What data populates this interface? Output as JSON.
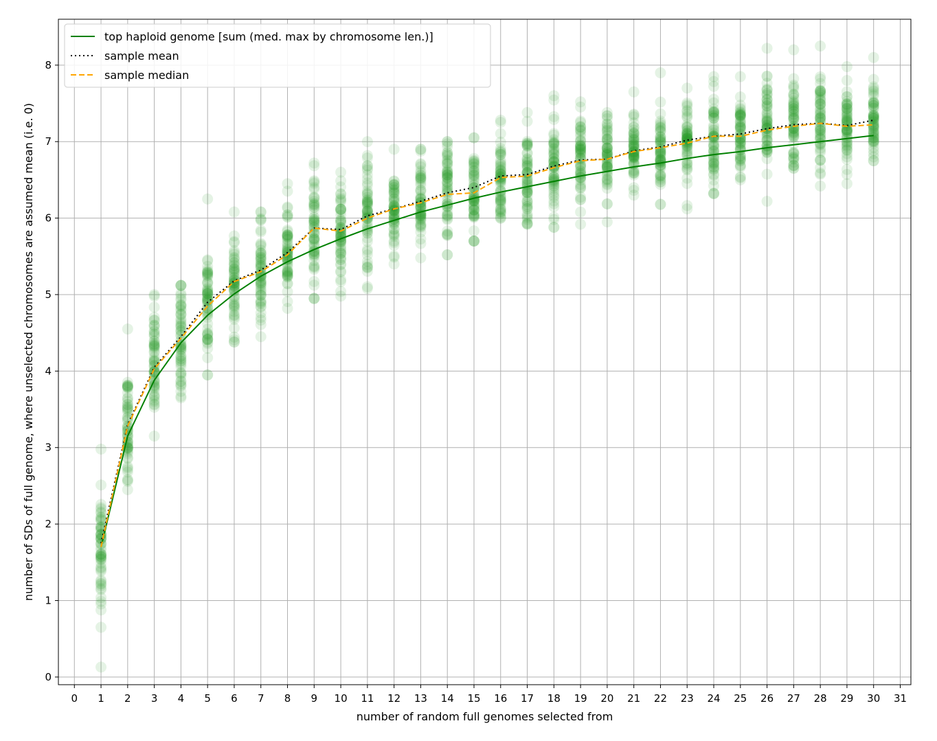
{
  "chart_data": {
    "type": "line",
    "title": "",
    "xlabel": "number of random full genomes selected from",
    "ylabel": "number of SDs of full genome, where unselected chromosomes are assumed mean (i.e. 0)",
    "xlim": [
      -0.6,
      31.4
    ],
    "ylim": [
      -0.1,
      8.6
    ],
    "xticks": [
      0,
      1,
      2,
      3,
      4,
      5,
      6,
      7,
      8,
      9,
      10,
      11,
      12,
      13,
      14,
      15,
      16,
      17,
      18,
      19,
      20,
      21,
      22,
      23,
      24,
      25,
      26,
      27,
      28,
      29,
      30,
      31
    ],
    "yticks": [
      0,
      1,
      2,
      3,
      4,
      5,
      6,
      7,
      8
    ],
    "grid": true,
    "legend_position": "top-left",
    "x": [
      1,
      2,
      3,
      4,
      5,
      6,
      7,
      8,
      9,
      10,
      11,
      12,
      13,
      14,
      15,
      16,
      17,
      18,
      19,
      20,
      21,
      22,
      23,
      24,
      25,
      26,
      27,
      28,
      29,
      30
    ],
    "series": [
      {
        "name": "top haploid genome [sum (med. max by chromosome len.)]",
        "style": "solid",
        "color": "#008000",
        "values": [
          1.7,
          3.15,
          3.88,
          4.37,
          4.73,
          5.01,
          5.24,
          5.43,
          5.59,
          5.73,
          5.86,
          5.97,
          6.08,
          6.17,
          6.26,
          6.34,
          6.41,
          6.48,
          6.55,
          6.61,
          6.67,
          6.72,
          6.78,
          6.83,
          6.87,
          6.92,
          6.96,
          7.0,
          7.04,
          7.08
        ]
      },
      {
        "name": "sample mean",
        "style": "dotted",
        "color": "#000000",
        "values": [
          1.75,
          3.3,
          4.05,
          4.45,
          4.9,
          5.18,
          5.32,
          5.55,
          5.87,
          5.85,
          6.03,
          6.12,
          6.22,
          6.33,
          6.4,
          6.55,
          6.57,
          6.68,
          6.76,
          6.77,
          6.88,
          6.93,
          7.02,
          7.07,
          7.1,
          7.17,
          7.22,
          7.24,
          7.21,
          7.28
        ]
      },
      {
        "name": "sample median",
        "style": "dashed",
        "color": "#FFA500",
        "values": [
          1.7,
          3.28,
          4.03,
          4.43,
          4.85,
          5.17,
          5.3,
          5.52,
          5.87,
          5.83,
          6.0,
          6.12,
          6.2,
          6.31,
          6.33,
          6.53,
          6.55,
          6.66,
          6.75,
          6.77,
          6.87,
          6.92,
          6.98,
          7.07,
          7.07,
          7.15,
          7.2,
          7.24,
          7.2,
          7.22
        ]
      }
    ],
    "scatter": {
      "color": "#2ca02c",
      "opacity": 0.12,
      "points_per_x": 60,
      "spread_sd": [
        0.4,
        0.35,
        0.38,
        0.4,
        0.4,
        0.35,
        0.3,
        0.3,
        0.35,
        0.3,
        0.35,
        0.3,
        0.32,
        0.35,
        0.3,
        0.3,
        0.3,
        0.28,
        0.3,
        0.28,
        0.28,
        0.28,
        0.28,
        0.3,
        0.28,
        0.3,
        0.28,
        0.3,
        0.28,
        0.26
      ],
      "min": [
        0.13,
        2.45,
        3.15,
        3.65,
        3.95,
        4.38,
        4.45,
        4.82,
        4.95,
        4.98,
        5.08,
        5.4,
        5.48,
        5.52,
        5.7,
        6.0,
        5.92,
        5.88,
        5.92,
        5.95,
        6.3,
        6.18,
        6.12,
        6.32,
        6.5,
        6.22,
        6.65,
        6.42,
        6.45,
        6.75
      ],
      "max": [
        2.98,
        4.55,
        5.0,
        5.12,
        6.25,
        6.08,
        6.08,
        6.45,
        6.72,
        6.6,
        7.0,
        6.9,
        6.9,
        7.0,
        7.05,
        7.28,
        7.38,
        7.6,
        7.52,
        7.38,
        7.65,
        7.9,
        7.7,
        7.85,
        7.85,
        8.22,
        8.2,
        8.25,
        7.98,
        8.1
      ]
    }
  }
}
